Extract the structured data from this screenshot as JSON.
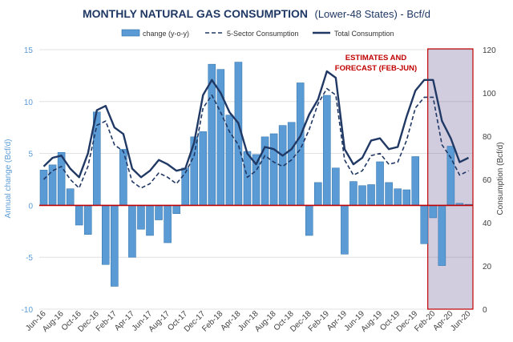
{
  "chart_data": {
    "type": "bar",
    "title_main": "MONTHLY NATURAL GAS CONSUMPTION",
    "title_sub": "(Lower-48 States) - Bcf/d",
    "ylabel_left": "Annual change (Bcf/d)",
    "ylabel_right": "Consumption (Bcf/d)",
    "ylim_left": [
      -10,
      15
    ],
    "ylim_right": [
      0,
      120
    ],
    "yticks_left": [
      "15",
      "10",
      "5",
      "0",
      "-5",
      "-10"
    ],
    "yticks_right": [
      "120",
      "100",
      "80",
      "60",
      "40",
      "20",
      "0"
    ],
    "grid": true,
    "legend_position": "top",
    "annotation": {
      "text_line1": "ESTIMATES AND",
      "text_line2": "FORECAST (FEB-JUN)",
      "start_category": "Feb-20",
      "end_category": "Jun-20"
    },
    "x": [
      "Jun-16",
      "Jul-16",
      "Aug-16",
      "Sep-16",
      "Oct-16",
      "Nov-16",
      "Dec-16",
      "Jan-17",
      "Feb-17",
      "Mar-17",
      "Apr-17",
      "May-17",
      "Jun-17",
      "Jul-17",
      "Aug-17",
      "Sep-17",
      "Oct-17",
      "Nov-17",
      "Dec-17",
      "Jan-18",
      "Feb-18",
      "Mar-18",
      "Apr-18",
      "May-18",
      "Jun-18",
      "Jul-18",
      "Aug-18",
      "Sep-18",
      "Oct-18",
      "Nov-18",
      "Dec-18",
      "Jan-19",
      "Feb-19",
      "Mar-19",
      "Apr-19",
      "May-19",
      "Jun-19",
      "Jul-19",
      "Aug-19",
      "Sep-19",
      "Oct-19",
      "Nov-19",
      "Dec-19",
      "Jan-20",
      "Feb-20",
      "Mar-20",
      "Apr-20",
      "May-20",
      "Jun-20"
    ],
    "x_tick_labels": [
      "Jun-16",
      "Aug-16",
      "Oct-16",
      "Dec-16",
      "Feb-17",
      "Apr-17",
      "Jun-17",
      "Aug-17",
      "Oct-17",
      "Dec-17",
      "Feb-18",
      "Apr-18",
      "Jun-18",
      "Aug-18",
      "Oct-18",
      "Dec-18",
      "Feb-19",
      "Apr-19",
      "Jun-19",
      "Aug-19",
      "Oct-19",
      "Dec-19",
      "Feb-20",
      "Apr-20",
      "Jun-20"
    ],
    "series": [
      {
        "name": "change (y-o-y)",
        "type": "bar",
        "axis": "left",
        "color": "#5b9bd5",
        "values": [
          3.4,
          3.9,
          5.1,
          1.6,
          -1.9,
          -2.8,
          9.0,
          -5.7,
          -7.8,
          5.4,
          -5.0,
          -2.3,
          -2.9,
          -1.4,
          -3.6,
          -0.8,
          3.6,
          6.6,
          7.1,
          13.6,
          13.1,
          8.7,
          13.8,
          5.2,
          4.9,
          6.6,
          6.9,
          7.7,
          8.0,
          11.8,
          -2.9,
          2.2,
          10.6,
          3.6,
          -4.7,
          2.3,
          1.9,
          2.0,
          4.2,
          2.2,
          1.6,
          1.5,
          4.7,
          -3.7,
          -1.2,
          -5.8,
          5.7,
          0.2,
          0.1
        ]
      },
      {
        "name": "5-Sector Consumption",
        "type": "line",
        "axis": "right",
        "style": "dashed",
        "color": "#203864",
        "values": [
          60,
          64,
          66,
          60,
          56,
          66,
          85,
          87,
          76,
          73,
          59,
          56,
          58,
          63,
          61,
          58,
          63,
          71,
          93,
          99,
          91,
          82,
          76,
          61,
          64,
          71,
          68,
          66,
          69,
          74,
          83,
          95,
          102,
          99,
          69,
          62,
          64,
          71,
          72,
          67,
          68,
          78,
          93,
          98,
          98,
          76,
          70,
          62,
          64
        ]
      },
      {
        "name": "Total Consumption",
        "type": "line",
        "axis": "right",
        "style": "solid",
        "color": "#203864",
        "values": [
          66,
          70,
          71,
          65,
          61,
          72,
          92,
          94,
          84,
          81,
          65,
          61,
          64,
          69,
          67,
          64,
          65,
          77,
          99,
          106,
          100,
          91,
          86,
          72,
          67,
          75,
          74,
          71,
          74,
          80,
          90,
          97,
          110,
          107,
          74,
          67,
          70,
          78,
          79,
          74,
          75,
          89,
          101,
          106,
          106,
          87,
          79,
          68,
          70
        ]
      }
    ]
  },
  "colors": {
    "bar": "#5b9bd5",
    "bar_edge": "#2e6fa8",
    "line": "#203864",
    "zero_line": "#c00000",
    "forecast_fill": "#7a6fa3",
    "forecast_border": "#c00000",
    "annotation_text": "#c00000",
    "title": "#1f3864",
    "axis_text": "#5b9bd5",
    "tick_text": "#404040",
    "grid": "#d9d9d9"
  }
}
